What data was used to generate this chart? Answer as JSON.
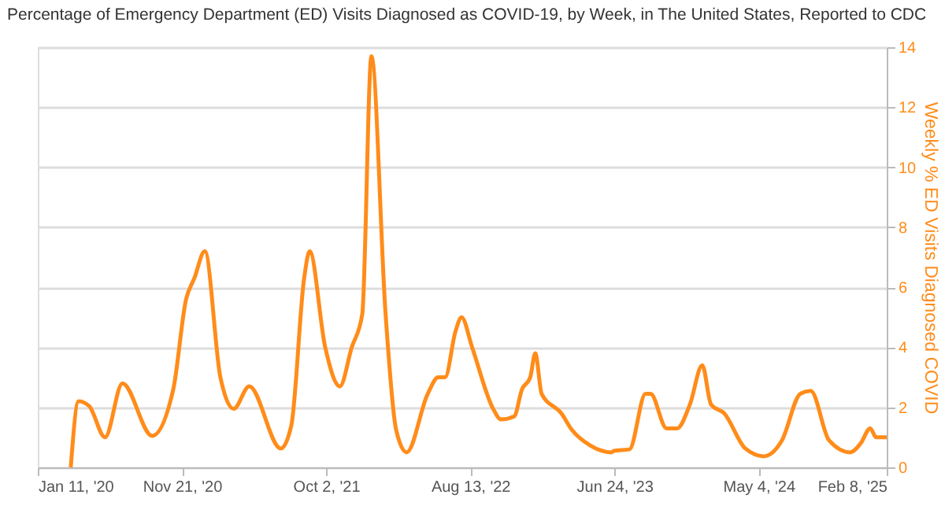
{
  "chart_data": {
    "type": "line",
    "title": "Percentage of Emergency Department (ED) Visits Diagnosed as COVID-19, by Week, in The United States, Reported to CDC",
    "ylabel": "Weekly % ED Visits Diagnosed COVID",
    "x": [
      "2020-03-23",
      "2020-04-09",
      "2020-05-02",
      "2020-06-06",
      "2020-07-14",
      "2020-09-17",
      "2020-11-02",
      "2020-11-30",
      "2020-12-18",
      "2021-01-10",
      "2021-02-13",
      "2021-03-14",
      "2021-04-17",
      "2021-06-25",
      "2021-07-18",
      "2021-08-15",
      "2021-08-27",
      "2021-09-30",
      "2021-11-01",
      "2021-11-27",
      "2021-12-20",
      "2022-01-09",
      "2022-02-09",
      "2022-03-04",
      "2022-03-27",
      "2022-05-12",
      "2022-06-04",
      "2022-06-19",
      "2022-07-12",
      "2022-07-25",
      "2022-08-17",
      "2022-10-02",
      "2022-10-19",
      "2022-11-17",
      "2022-12-04",
      "2022-12-22",
      "2023-01-02",
      "2023-01-16",
      "2023-02-28",
      "2023-03-23",
      "2023-05-02",
      "2023-06-17",
      "2023-06-23",
      "2023-07-27",
      "2023-08-31",
      "2023-09-11",
      "2023-10-16",
      "2023-11-08",
      "2023-12-06",
      "2024-01-02",
      "2024-01-21",
      "2024-02-19",
      "2024-04-05",
      "2024-05-15",
      "2024-06-24",
      "2024-08-03",
      "2024-08-26",
      "2024-10-05",
      "2024-11-20",
      "2024-12-13",
      "2025-01-03",
      "2025-01-16",
      "2025-02-08"
    ],
    "series": [
      {
        "color": "#ff8c1a",
        "values": [
          0,
          2.2,
          2.05,
          1.0,
          2.8,
          1.05,
          2.6,
          5.6,
          6.3,
          7.2,
          3.0,
          1.95,
          2.7,
          0.63,
          1.4,
          6.3,
          7.2,
          4.0,
          2.7,
          4.0,
          5.1,
          13.7,
          5.1,
          1.25,
          0.5,
          2.45,
          3.0,
          3.0,
          4.55,
          5.0,
          4.0,
          1.95,
          1.6,
          1.7,
          2.6,
          3.0,
          3.8,
          2.45,
          1.8,
          1.25,
          0.73,
          0.5,
          0.55,
          0.6,
          2.45,
          2.45,
          1.3,
          1.3,
          2.1,
          3.4,
          2.1,
          1.8,
          0.63,
          0.37,
          0.9,
          2.45,
          2.55,
          0.9,
          0.5,
          0.8,
          1.3,
          1.0,
          1.0
        ]
      }
    ],
    "xlim": [
      "2020-01-11",
      "2025-02-08"
    ],
    "xticks": [
      {
        "value": "2020-01-11",
        "label": "Jan 11, '20"
      },
      {
        "value": "2020-11-21",
        "label": "Nov 21, '20"
      },
      {
        "value": "2021-10-02",
        "label": "Oct 2, '21"
      },
      {
        "value": "2022-08-13",
        "label": "Aug 13, '22"
      },
      {
        "value": "2023-06-24",
        "label": "Jun 24, '23"
      },
      {
        "value": "2024-05-04",
        "label": "May 4, '24"
      },
      {
        "value": "2025-02-08",
        "label": "Feb 8, '25"
      }
    ],
    "ylim": [
      0,
      14
    ],
    "yticks": [
      0,
      2,
      4,
      6,
      8,
      10,
      12,
      14
    ],
    "grid": "y",
    "marker": "none",
    "line_style": "solid"
  }
}
